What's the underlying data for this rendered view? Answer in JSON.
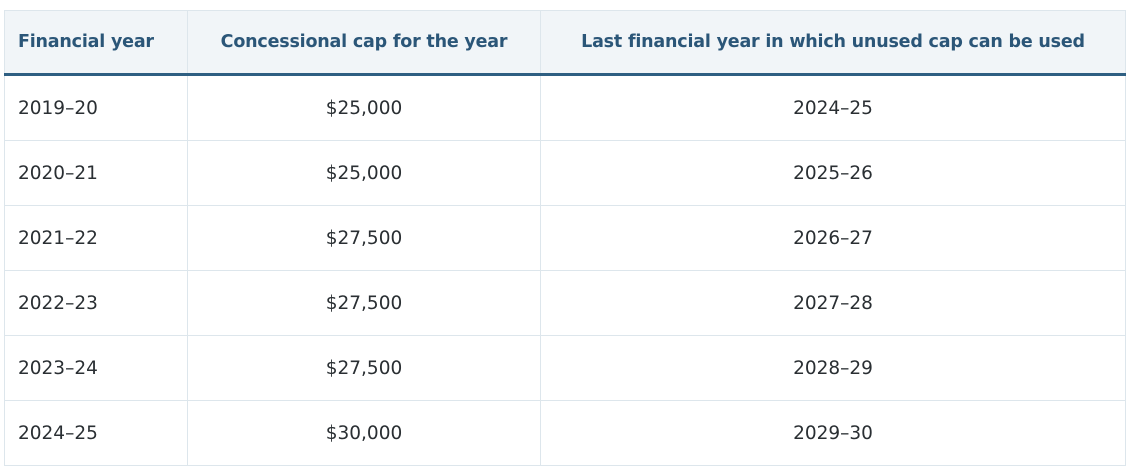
{
  "table": {
    "headers": [
      "Financial year",
      "Concessional cap for the year",
      "Last financial year in which unused cap can be used"
    ],
    "rows": [
      [
        "2019–20",
        "$25,000",
        "2024–25"
      ],
      [
        "2020–21",
        "$25,000",
        "2025–26"
      ],
      [
        "2021–22",
        "$27,500",
        "2026–27"
      ],
      [
        "2022–23",
        "$27,500",
        "2027–28"
      ],
      [
        "2023–24",
        "$27,500",
        "2028–29"
      ],
      [
        "2024–25",
        "$30,000",
        "2029–30"
      ]
    ]
  },
  "colors": {
    "header_text": "#2b5678",
    "header_bg": "#f1f5f8",
    "header_rule": "#2e5f82",
    "cell_text": "#2a2f33",
    "grid": "#dde6ec"
  }
}
